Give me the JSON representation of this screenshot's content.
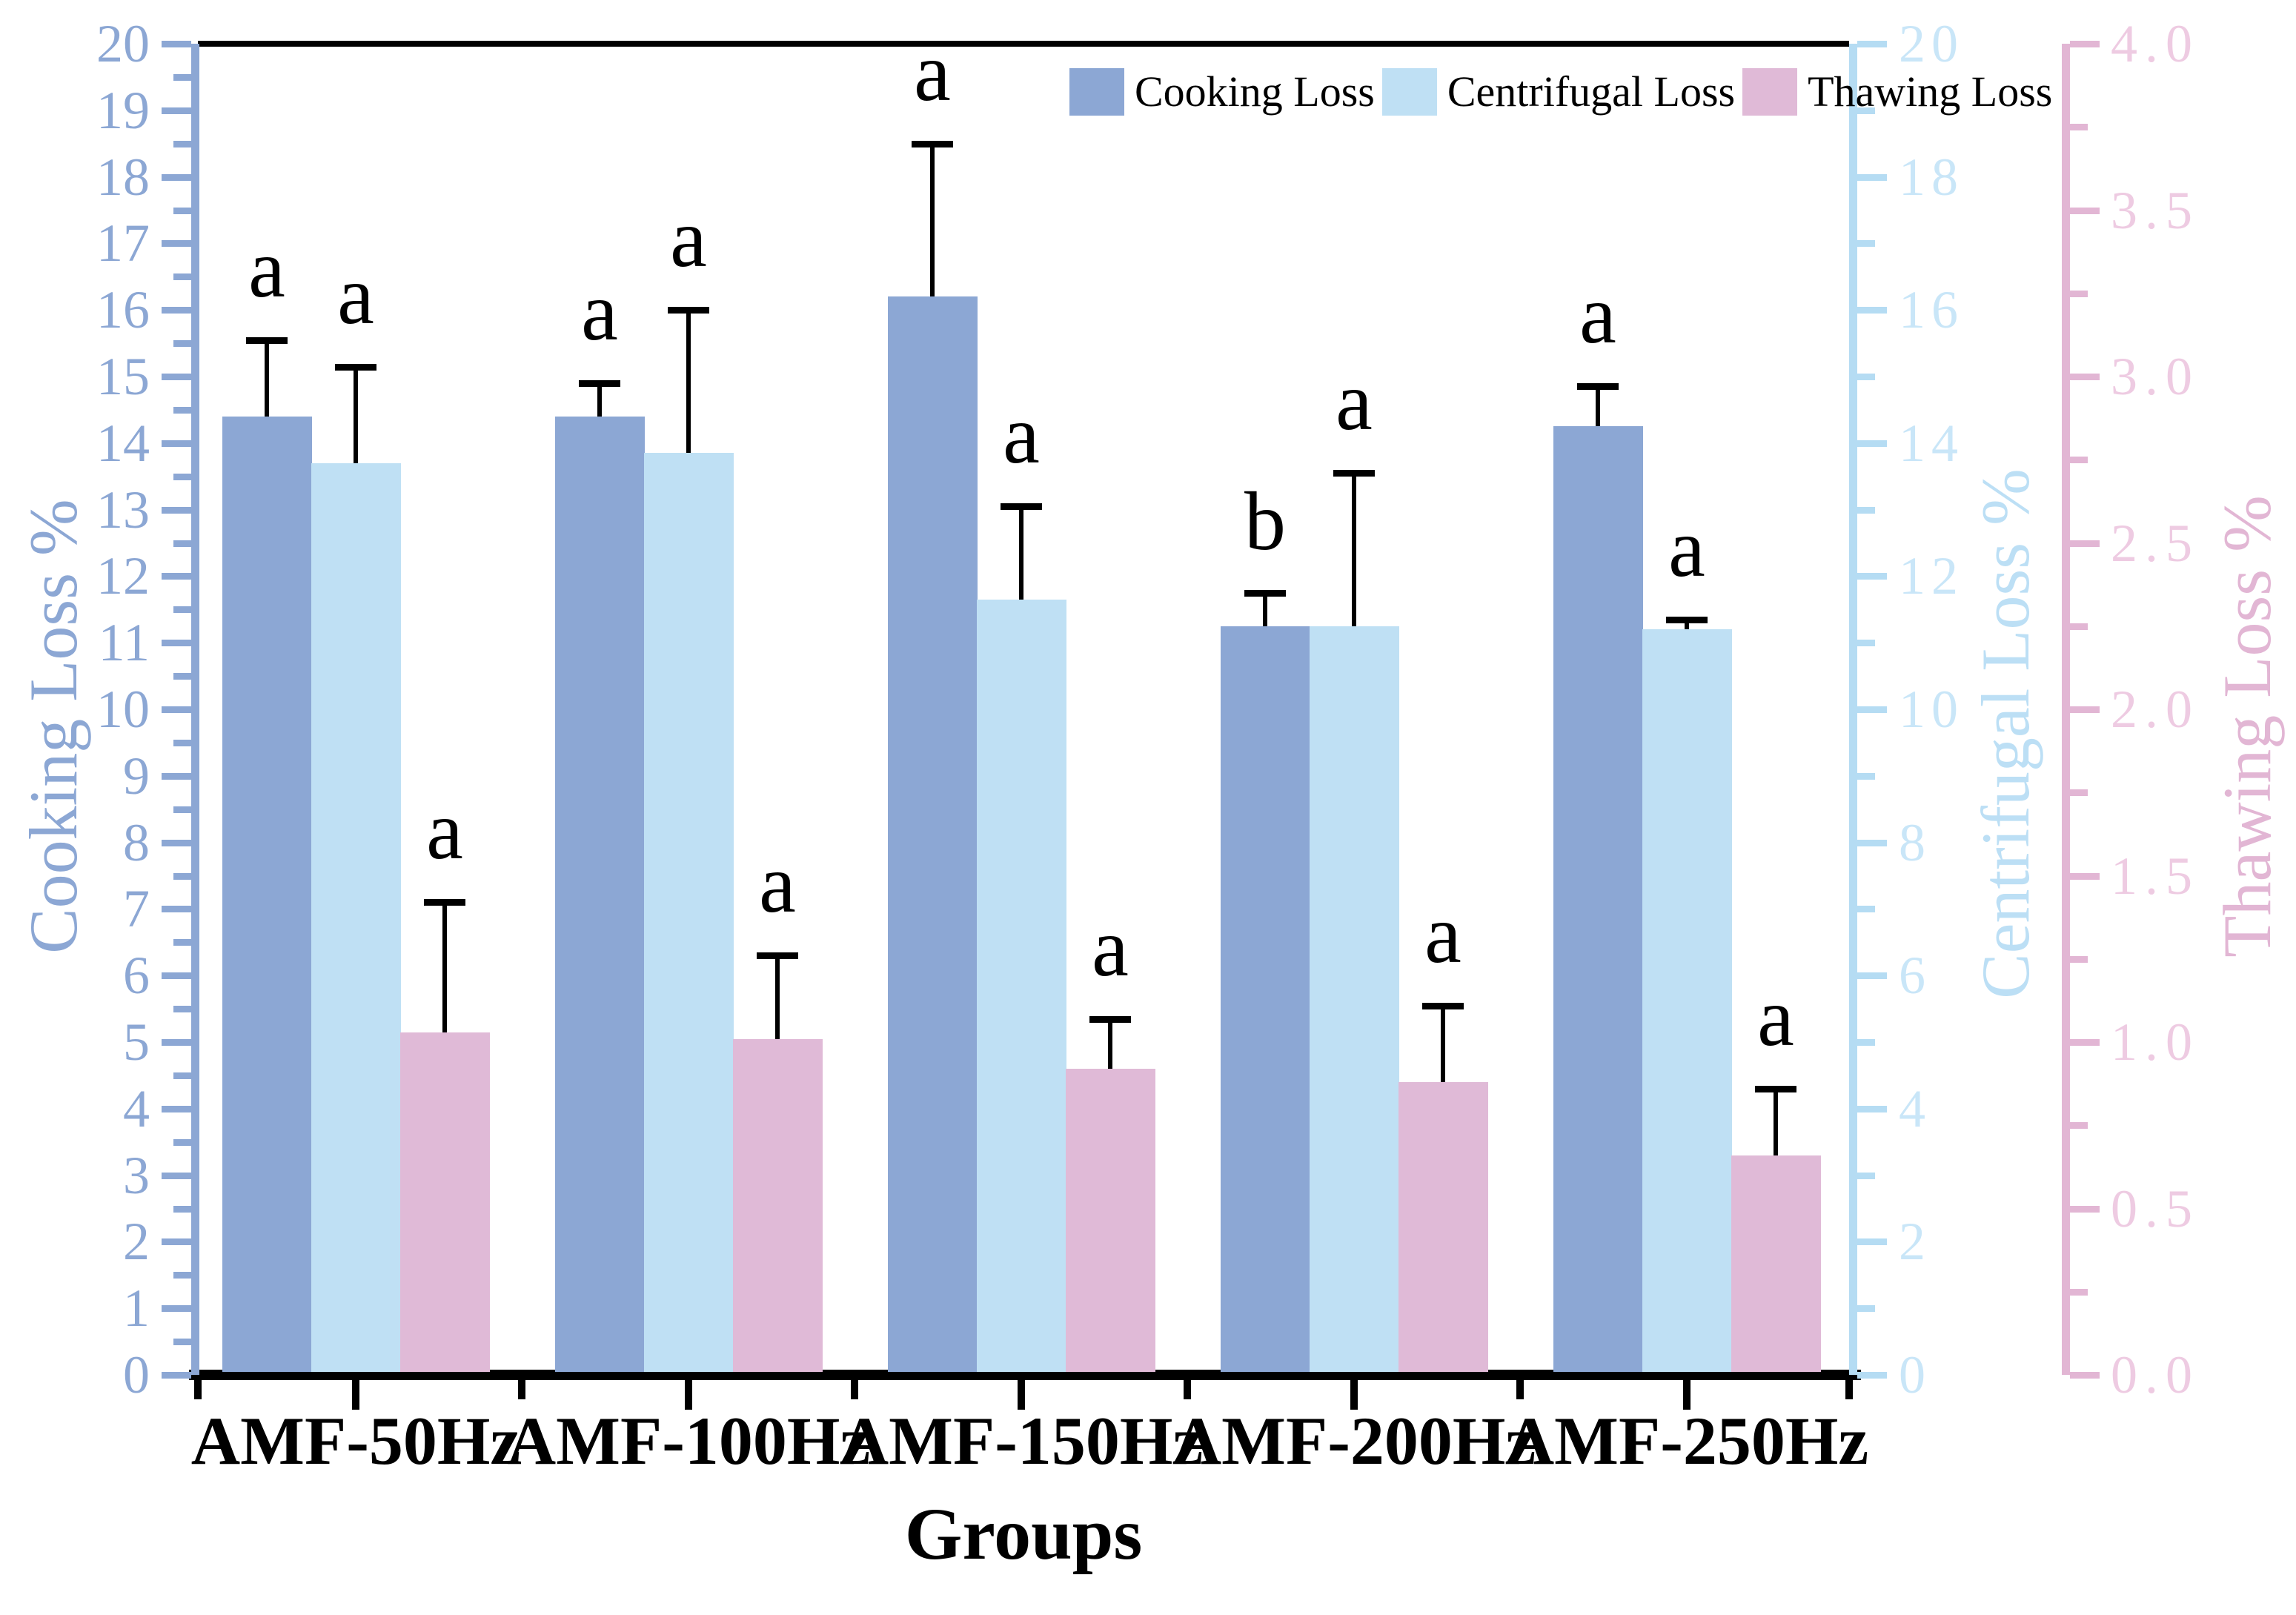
{
  "chart_data": {
    "type": "bar",
    "title": "",
    "xlabel": "Groups",
    "legend_position": "top-right-inside",
    "grid": false,
    "categories": [
      "AMF-50Hz",
      "AMF-100Hz",
      "AMF-150Hz",
      "AMF-200Hz",
      "AMF-250Hz"
    ],
    "series": [
      {
        "name": "Cooking Loss",
        "axis": "left",
        "color": "#8CA7D4",
        "values": [
          14.4,
          14.4,
          16.2,
          11.25,
          14.25
        ],
        "errors": [
          1.15,
          0.5,
          2.3,
          0.5,
          0.6
        ],
        "letters": [
          "a",
          "a",
          "a",
          "b",
          "a"
        ]
      },
      {
        "name": "Centrifugal Loss",
        "axis": "right_inner",
        "color": "#BFE0F4",
        "values": [
          13.7,
          13.85,
          11.65,
          11.25,
          11.2
        ],
        "errors": [
          1.45,
          2.15,
          1.4,
          2.3,
          0.15
        ],
        "letters": [
          "a",
          "a",
          "a",
          "a",
          "a"
        ]
      },
      {
        "name": "Thawing Loss",
        "axis": "right_outer",
        "color": "#E0BAD7",
        "values": [
          1.03,
          1.01,
          0.92,
          0.88,
          0.66
        ],
        "errors": [
          0.39,
          0.25,
          0.15,
          0.23,
          0.2
        ],
        "letters": [
          "a",
          "a",
          "a",
          "a",
          "a"
        ]
      }
    ],
    "axes": {
      "left": {
        "label": "Cooking Loss %",
        "min": 0,
        "max": 20,
        "major_step": 1,
        "minor_step": 0.5,
        "color": "#8CA7D4",
        "label_color": "#8CA7D4",
        "tick_labels": [
          "0",
          "1",
          "2",
          "3",
          "4",
          "5",
          "6",
          "7",
          "8",
          "9",
          "10",
          "11",
          "12",
          "13",
          "14",
          "15",
          "16",
          "17",
          "18",
          "19",
          "20"
        ]
      },
      "right_inner": {
        "label": "Centrifugal  Loss %",
        "min": 0,
        "max": 20,
        "major_step": 2,
        "minor_step": 1,
        "color": "#B5DCF3",
        "label_color": "#C9E6F8",
        "tick_labels": [
          "0",
          "2",
          "4",
          "6",
          "8",
          "10",
          "12",
          "14",
          "16",
          "18",
          "20"
        ]
      },
      "right_outer": {
        "label": "Thawing Loss %",
        "min": 0,
        "max": 4,
        "major_step": 0.5,
        "minor_step": 0.25,
        "color": "#E2B6D4",
        "label_color": "#EECBE2",
        "tick_labels": [
          "0.0",
          "0.5",
          "1.0",
          "1.5",
          "2.0",
          "2.5",
          "3.0",
          "3.5",
          "4.0"
        ]
      }
    }
  }
}
